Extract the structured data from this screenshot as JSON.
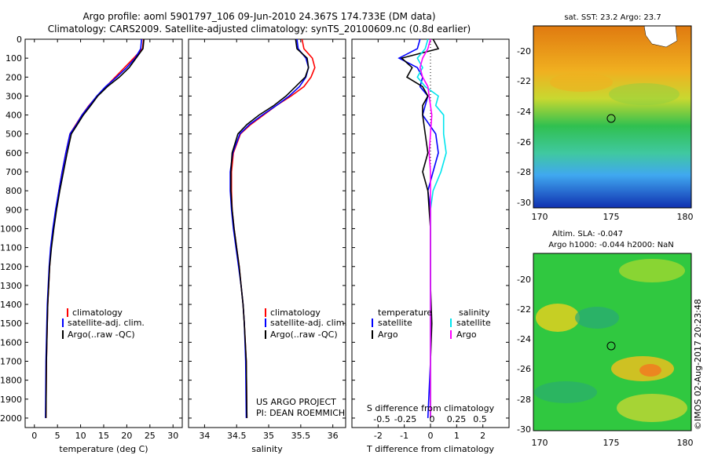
{
  "header": {
    "title_line1": "Argo profile: aoml 5901797_106 09-Jun-2010 24.367S 174.733E (DM data)",
    "title_line2": "Climatology: CARS2009. Satellite-adjusted climatology: synTS_20100609.nc (0.8d earlier)"
  },
  "colors": {
    "climatology": "#ff0000",
    "satellite": "#0000ff",
    "argo": "#000000",
    "sat_salinity": "#00e5ee",
    "argo_salinity": "#ff00ff"
  },
  "depth_axis": {
    "ticks": [
      0,
      100,
      200,
      300,
      400,
      500,
      600,
      700,
      800,
      900,
      1000,
      1100,
      1200,
      1300,
      1400,
      1500,
      1600,
      1700,
      1800,
      1900,
      2000
    ],
    "max": 2050
  },
  "temp_panel": {
    "xlabel": "temperature (deg C)",
    "xlim": [
      -2,
      32
    ],
    "xticks": [
      0,
      5,
      10,
      15,
      20,
      25,
      30
    ],
    "legend": [
      {
        "label": "climatology",
        "color_key": "climatology"
      },
      {
        "label": "satellite-adj. clim.",
        "color_key": "satellite"
      },
      {
        "label": "Argo(..raw -QC)",
        "color_key": "argo"
      }
    ]
  },
  "sal_panel": {
    "xlabel": "salinity",
    "xlim": [
      33.75,
      36.2
    ],
    "xticks": [
      34,
      34.5,
      35,
      35.5,
      36
    ],
    "xtick_labels": [
      "34",
      "34.5",
      "35",
      "35.5",
      "36"
    ],
    "legend": [
      {
        "label": "climatology",
        "color_key": "climatology"
      },
      {
        "label": "satellite-adj. clim.",
        "color_key": "satellite"
      },
      {
        "label": "Argo(..raw -QC)",
        "color_key": "argo"
      }
    ],
    "project_line1": "US ARGO PROJECT",
    "project_line2": "PI: DEAN ROEMMICH"
  },
  "diff_panel": {
    "xlabel": "T difference from climatology",
    "xlim": [
      -3,
      3
    ],
    "xticks": [
      -2,
      -1,
      0,
      1,
      2
    ],
    "s_label": "S difference from climatology",
    "s_ticks": [
      "-0.5",
      "-0.25",
      "0",
      "0.25",
      "0.5"
    ],
    "legend_temp_header": "temperature",
    "legend_sal_header": "salinity",
    "legend": [
      {
        "label": "satellite",
        "color_key": "satellite",
        "group": "temperature"
      },
      {
        "label": "Argo",
        "color_key": "argo",
        "group": "temperature"
      },
      {
        "label": "satellite",
        "color_key": "sat_salinity",
        "group": "salinity"
      },
      {
        "label": "Argo",
        "color_key": "argo_salinity",
        "group": "salinity"
      }
    ]
  },
  "sst_map": {
    "title": "sat. SST: 23.2 Argo: 23.7",
    "xticks": [
      "170",
      "175",
      "180"
    ],
    "yticks": [
      "-20",
      "-22",
      "-24",
      "-26",
      "-28",
      "-30"
    ]
  },
  "sla_map": {
    "title_line1": "Altim. SLA: -0.047",
    "title_line2": "Argo h1000: -0.044 h2000: NaN",
    "xticks": [
      "170",
      "175",
      "180"
    ],
    "yticks": [
      "-20",
      "-22",
      "-24",
      "-26",
      "-28",
      "-30"
    ]
  },
  "credit": "©IMOS 02-Aug-2017 20:23:48",
  "chart_data": [
    {
      "type": "line",
      "xlabel": "temperature (deg C)",
      "ylabel": "",
      "xlim": [
        -2,
        32
      ],
      "ylim": [
        2050,
        0
      ],
      "series": [
        {
          "name": "climatology",
          "x": [
            23.6,
            23.4,
            21.5,
            19.5,
            17.5,
            15.5,
            13.6,
            11.8,
            10.3,
            9.0,
            7.7,
            6.8,
            6.0,
            5.3,
            4.7,
            4.1,
            3.6,
            3.3,
            3.1,
            2.9,
            2.8,
            2.6,
            2.5
          ],
          "y": [
            0,
            50,
            100,
            150,
            200,
            250,
            300,
            350,
            400,
            450,
            500,
            600,
            700,
            800,
            900,
            1000,
            1100,
            1200,
            1300,
            1400,
            1500,
            1700,
            2000
          ]
        },
        {
          "name": "satellite-adj. clim.",
          "x": [
            23.2,
            23.0,
            21.8,
            20.0,
            17.8,
            15.4,
            13.5,
            11.9,
            10.3,
            9.1,
            7.7,
            6.8,
            6.0,
            5.3,
            4.6,
            4.0,
            3.5,
            3.2,
            3.0,
            2.8,
            2.7,
            2.5,
            2.4
          ],
          "y": [
            0,
            50,
            100,
            150,
            200,
            250,
            300,
            350,
            400,
            450,
            500,
            600,
            700,
            800,
            900,
            1000,
            1100,
            1200,
            1300,
            1400,
            1500,
            1700,
            2000
          ]
        },
        {
          "name": "Argo(..raw -QC)",
          "x": [
            23.7,
            23.5,
            22.0,
            20.5,
            18.4,
            15.8,
            13.7,
            12.2,
            10.6,
            9.3,
            8.0,
            7.1,
            6.3,
            5.5,
            4.8,
            4.2,
            3.7,
            3.3,
            3.1,
            2.9,
            2.8,
            2.6,
            2.5
          ],
          "y": [
            0,
            50,
            100,
            150,
            200,
            250,
            300,
            350,
            400,
            450,
            500,
            600,
            700,
            800,
            900,
            1000,
            1100,
            1200,
            1300,
            1400,
            1500,
            1700,
            2000
          ]
        }
      ]
    },
    {
      "type": "line",
      "xlabel": "salinity",
      "ylabel": "",
      "xlim": [
        33.75,
        36.2
      ],
      "ylim": [
        2050,
        0
      ],
      "series": [
        {
          "name": "climatology",
          "x": [
            35.52,
            35.55,
            35.68,
            35.72,
            35.66,
            35.55,
            35.35,
            35.12,
            34.92,
            34.72,
            34.56,
            34.45,
            34.42,
            34.42,
            34.43,
            34.46,
            34.5,
            34.54,
            34.57,
            34.6,
            34.62,
            34.65,
            34.66
          ],
          "y": [
            0,
            50,
            100,
            150,
            200,
            250,
            300,
            350,
            400,
            450,
            500,
            600,
            700,
            800,
            900,
            1000,
            1100,
            1200,
            1300,
            1400,
            1500,
            1700,
            2000
          ]
        },
        {
          "name": "satellite-adj. clim.",
          "x": [
            35.44,
            35.46,
            35.58,
            35.62,
            35.58,
            35.48,
            35.32,
            35.12,
            34.9,
            34.7,
            34.55,
            34.44,
            34.4,
            34.4,
            34.42,
            34.45,
            34.49,
            34.53,
            34.57,
            34.6,
            34.62,
            34.64,
            34.65
          ],
          "y": [
            0,
            50,
            100,
            150,
            200,
            250,
            300,
            350,
            400,
            450,
            500,
            600,
            700,
            800,
            900,
            1000,
            1100,
            1200,
            1300,
            1400,
            1500,
            1700,
            2000
          ]
        },
        {
          "name": "Argo(..raw -QC)",
          "x": [
            35.42,
            35.44,
            35.6,
            35.62,
            35.57,
            35.42,
            35.27,
            35.08,
            34.85,
            34.66,
            34.52,
            34.43,
            34.41,
            34.41,
            34.43,
            34.46,
            34.5,
            34.54,
            34.57,
            34.6,
            34.62,
            34.65,
            34.66
          ],
          "y": [
            0,
            50,
            100,
            150,
            200,
            250,
            300,
            350,
            400,
            450,
            500,
            600,
            700,
            800,
            900,
            1000,
            1100,
            1200,
            1300,
            1400,
            1500,
            1700,
            2000
          ]
        }
      ]
    },
    {
      "type": "line",
      "xlabel": "T difference from climatology",
      "ylabel": "",
      "xlim": [
        -3,
        3
      ],
      "ylim": [
        2050,
        0
      ],
      "series": [
        {
          "name": "satellite",
          "x": [
            -0.4,
            -0.5,
            -1.2,
            -0.5,
            -0.3,
            -0.4,
            -0.1,
            -0.2,
            -0.3,
            0.2,
            0.3,
            0.1,
            -0.1,
            0.0,
            0.0,
            0.0,
            0.0,
            0.0,
            0.0,
            0.0,
            -0.1
          ],
          "y": [
            0,
            50,
            100,
            150,
            200,
            250,
            300,
            350,
            400,
            500,
            600,
            700,
            800,
            900,
            1000,
            1100,
            1200,
            1300,
            1500,
            1700,
            2000
          ]
        },
        {
          "name": "Argo",
          "x": [
            0.1,
            0.3,
            -1.1,
            -0.7,
            -0.9,
            -0.3,
            -0.1,
            -0.3,
            -0.3,
            -0.2,
            -0.1,
            -0.3,
            -0.1,
            -0.05,
            0.0,
            0.0,
            0.0,
            0.0,
            0.05,
            0.0,
            0.0
          ],
          "y": [
            0,
            50,
            100,
            150,
            200,
            250,
            300,
            350,
            400,
            500,
            600,
            700,
            800,
            900,
            1000,
            1100,
            1200,
            1300,
            1500,
            1700,
            2000
          ]
        },
        {
          "name": "satellite (salinity)",
          "x": [
            -0.1,
            -0.2,
            -0.5,
            -0.3,
            -0.5,
            -0.2,
            0.3,
            0.2,
            0.5,
            0.5,
            0.6,
            0.4,
            0.1,
            0.0,
            0.0,
            0.0,
            0.0,
            0.0,
            0.0,
            0.0,
            0.0
          ],
          "y": [
            0,
            50,
            100,
            150,
            200,
            250,
            300,
            350,
            400,
            500,
            600,
            700,
            800,
            900,
            1000,
            1100,
            1200,
            1300,
            1500,
            1700,
            2000
          ]
        },
        {
          "name": "Argo (salinity)",
          "x": [
            0.0,
            -0.1,
            -0.3,
            -0.4,
            -0.3,
            -0.1,
            -0.05,
            0.0,
            0.05,
            0.0,
            -0.05,
            0.0,
            0.0,
            0.0,
            0.0,
            0.0,
            0.0,
            0.0,
            0.0,
            0.0,
            0.0
          ],
          "y": [
            0,
            50,
            100,
            150,
            200,
            250,
            300,
            350,
            400,
            500,
            600,
            700,
            800,
            900,
            1000,
            1100,
            1200,
            1300,
            1500,
            1700,
            2000
          ]
        }
      ]
    }
  ]
}
